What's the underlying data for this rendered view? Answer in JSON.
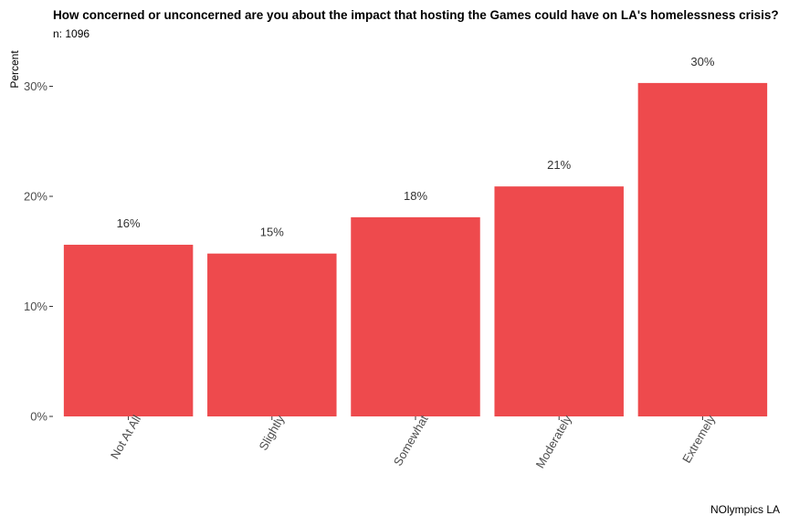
{
  "chart_data": {
    "type": "bar",
    "title": "How concerned or unconcerned are you about the impact that hosting the Games could have on LA's homelessness crisis?",
    "subtitle": "n: 1096",
    "caption": "NOlympics LA",
    "xlabel": "",
    "ylabel": "Percent",
    "categories": [
      "Not At All",
      "Slightly",
      "Somewhat",
      "Moderately",
      "Extremely"
    ],
    "values": [
      15.6,
      14.8,
      18.1,
      20.9,
      30.3
    ],
    "data_labels": [
      "16%",
      "15%",
      "18%",
      "21%",
      "30%"
    ],
    "y_ticks": [
      0,
      10,
      20,
      30
    ],
    "y_tick_labels": [
      "0%",
      "10%",
      "20%",
      "30%"
    ],
    "ylim": [
      0,
      32
    ],
    "grid": false,
    "bar_color": "#EE4A4D"
  }
}
